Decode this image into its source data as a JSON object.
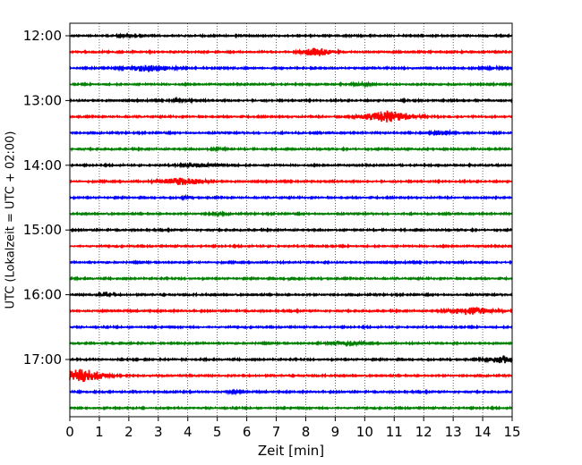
{
  "chart_data": {
    "type": "line",
    "subtype": "helicorder",
    "title": "",
    "xlabel": "Zeit  [min]",
    "ylabel": "UTC (Lokalzeit = UTC + 02:00)",
    "xlim": [
      0,
      15
    ],
    "x_ticks": [
      "0",
      "1",
      "2",
      "3",
      "4",
      "5",
      "6",
      "7",
      "8",
      "9",
      "10",
      "11",
      "12",
      "13",
      "14",
      "15"
    ],
    "grid": "vertical dotted",
    "legend": "none",
    "start_time": "12:00",
    "minutes_per_line": 15,
    "y_ticks": [
      {
        "label": "12:00",
        "line_index": 0
      },
      {
        "label": "13:00",
        "line_index": 4
      },
      {
        "label": "14:00",
        "line_index": 8
      },
      {
        "label": "15:00",
        "line_index": 12
      },
      {
        "label": "16:00",
        "line_index": 16
      },
      {
        "label": "17:00",
        "line_index": 20
      }
    ],
    "colors": [
      "#000000",
      "#ff0000",
      "#0000ff",
      "#008000"
    ],
    "traces": [
      {
        "time": "12:00",
        "events": [
          {
            "minute": 1.9,
            "amp": 0.25,
            "width": 0.3
          }
        ]
      },
      {
        "time": "12:15",
        "events": [
          {
            "minute": 8.4,
            "amp": 0.9,
            "width": 0.5
          }
        ]
      },
      {
        "time": "12:30",
        "events": [
          {
            "minute": 2.7,
            "amp": 0.75,
            "width": 0.7
          },
          {
            "minute": 14.2,
            "amp": 0.3,
            "width": 0.3
          }
        ]
      },
      {
        "time": "12:45",
        "events": [
          {
            "minute": 9.9,
            "amp": 0.3,
            "width": 0.3
          }
        ]
      },
      {
        "time": "13:00",
        "events": [
          {
            "minute": 3.8,
            "amp": 0.3,
            "width": 0.3
          }
        ]
      },
      {
        "time": "13:15",
        "events": [
          {
            "minute": 10.8,
            "amp": 1.2,
            "width": 0.8
          }
        ]
      },
      {
        "time": "13:30",
        "events": [
          {
            "minute": 12.6,
            "amp": 0.5,
            "width": 0.3
          }
        ]
      },
      {
        "time": "13:45",
        "events": [
          {
            "minute": 5.0,
            "amp": 0.15,
            "width": 0.3
          }
        ]
      },
      {
        "time": "14:00",
        "events": [
          {
            "minute": 4.5,
            "amp": 0.35,
            "width": 0.7
          }
        ]
      },
      {
        "time": "14:15",
        "events": [
          {
            "minute": 3.8,
            "amp": 0.75,
            "width": 0.7
          }
        ]
      },
      {
        "time": "14:30",
        "events": [
          {
            "minute": 4.0,
            "amp": 0.3,
            "width": 0.2
          }
        ]
      },
      {
        "time": "14:45",
        "events": [
          {
            "minute": 5.0,
            "amp": 0.2,
            "width": 0.3
          }
        ]
      },
      {
        "time": "15:00",
        "events": []
      },
      {
        "time": "15:15",
        "events": []
      },
      {
        "time": "15:30",
        "events": []
      },
      {
        "time": "15:45",
        "events": [
          {
            "minute": 7.5,
            "amp": 0.35,
            "width": 0.15
          }
        ]
      },
      {
        "time": "16:00",
        "events": [
          {
            "minute": 1.2,
            "amp": 0.2,
            "width": 0.3
          }
        ]
      },
      {
        "time": "16:15",
        "events": [
          {
            "minute": 13.6,
            "amp": 0.85,
            "width": 0.7
          }
        ]
      },
      {
        "time": "16:30",
        "events": []
      },
      {
        "time": "16:45",
        "events": [
          {
            "minute": 9.3,
            "amp": 0.55,
            "width": 0.5
          }
        ]
      },
      {
        "time": "17:00",
        "events": [
          {
            "minute": 14.7,
            "amp": 0.85,
            "width": 0.5
          }
        ]
      },
      {
        "time": "17:15",
        "events": [
          {
            "minute": 0.4,
            "amp": 1.4,
            "width": 0.7
          }
        ]
      },
      {
        "time": "17:30",
        "events": [
          {
            "minute": 5.6,
            "amp": 0.15,
            "width": 0.3
          }
        ]
      },
      {
        "time": "17:45",
        "events": []
      }
    ]
  }
}
